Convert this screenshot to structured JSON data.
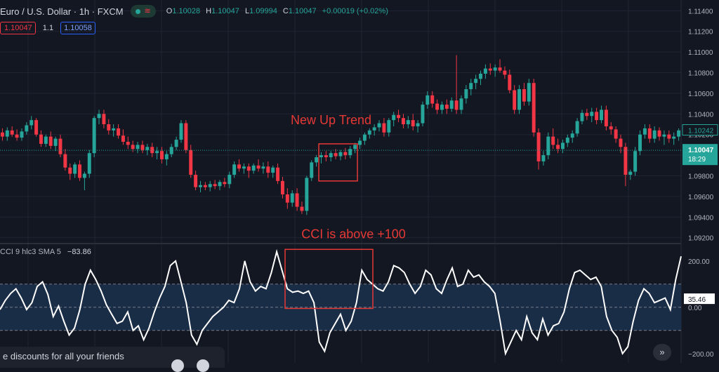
{
  "header": {
    "symbol": "Euro / U.S. Dollar · 1h · FXCM",
    "ohlc": {
      "o_label": "O",
      "o": "1.10028",
      "h_label": "H",
      "h": "1.10047",
      "l_label": "L",
      "l": "1.09994",
      "c_label": "C",
      "c": "1.10047",
      "change": "+0.00019 (+0.02%)"
    }
  },
  "quote": {
    "bid": "1.10047",
    "spread": "1.1",
    "ask": "1.10058"
  },
  "cci_legend": {
    "name": "CCI 9 hlc3 SMA 5",
    "value": "−83.86"
  },
  "popup": {
    "text": "e discounts for all your friends"
  },
  "scroll_icon": "»",
  "chart_data": [
    {
      "type": "candlestick",
      "y_ticks": [
        "1.11400",
        "1.11200",
        "1.11000",
        "1.10800",
        "1.10600",
        "1.10400",
        "1.10200",
        "1.10000",
        "1.09800",
        "1.09600",
        "1.09400",
        "1.09200"
      ],
      "ylim": [
        1.0915,
        1.1145
      ],
      "up_color": "#26a69a",
      "down_color": "#f23645",
      "last_price_label": "1.10047",
      "countdown": "18:29",
      "secondary_price_label": "1.10242",
      "annotation": {
        "text": "New Up Trend",
        "color": "#e53935",
        "box": {
          "candles": [
            66,
            74
          ],
          "price_range": [
            1.0975,
            1.1011
          ]
        }
      },
      "candles": [
        [
          1.1022,
          1.1026,
          1.1014,
          1.1018
        ],
        [
          1.1018,
          1.1027,
          1.1014,
          1.1024
        ],
        [
          1.1024,
          1.1028,
          1.1018,
          1.102
        ],
        [
          1.102,
          1.1025,
          1.1014,
          1.1017
        ],
        [
          1.1017,
          1.1026,
          1.1014,
          1.1023
        ],
        [
          1.1023,
          1.1032,
          1.102,
          1.1029
        ],
        [
          1.1029,
          1.1038,
          1.1025,
          1.1034
        ],
        [
          1.1034,
          1.1036,
          1.1018,
          1.102
        ],
        [
          1.102,
          1.1024,
          1.1008,
          1.1011
        ],
        [
          1.1011,
          1.102,
          1.1008,
          1.1018
        ],
        [
          1.1018,
          1.1023,
          1.1006,
          1.1009
        ],
        [
          1.1009,
          1.1018,
          1.1004,
          1.1016
        ],
        [
          1.1016,
          1.102,
          1.0998,
          1.1001
        ],
        [
          1.1001,
          1.1006,
          1.0985,
          1.0988
        ],
        [
          1.0988,
          1.0992,
          1.0976,
          1.0982
        ],
        [
          1.0982,
          1.0993,
          1.0978,
          1.0991
        ],
        [
          1.0991,
          1.0995,
          1.0975,
          1.0978
        ],
        [
          1.0978,
          1.0984,
          1.0966,
          1.0982
        ],
        [
          1.0982,
          1.1005,
          1.0978,
          1.1002
        ],
        [
          1.1002,
          1.1038,
          1.0998,
          1.1036
        ],
        [
          1.1036,
          1.1044,
          1.103,
          1.104
        ],
        [
          1.104,
          1.1044,
          1.1026,
          1.103
        ],
        [
          1.103,
          1.1035,
          1.102,
          1.1024
        ],
        [
          1.1024,
          1.103,
          1.1018,
          1.1026
        ],
        [
          1.1026,
          1.103,
          1.1016,
          1.1019
        ],
        [
          1.1019,
          1.1025,
          1.101,
          1.1013
        ],
        [
          1.1013,
          1.1018,
          1.1006,
          1.101
        ],
        [
          1.101,
          1.1014,
          1.1003,
          1.1006
        ],
        [
          1.1006,
          1.1013,
          1.1002,
          1.101
        ],
        [
          1.101,
          1.1014,
          1.1002,
          1.1005
        ],
        [
          1.1005,
          1.1011,
          1.1,
          1.1008
        ],
        [
          1.1008,
          1.1012,
          1.0998,
          1.1002
        ],
        [
          1.1002,
          1.1008,
          1.0996,
          1.1004
        ],
        [
          1.1004,
          1.1008,
          1.0992,
          1.0996
        ],
        [
          1.0996,
          1.1004,
          1.099,
          1.1001
        ],
        [
          1.1001,
          1.1011,
          1.0998,
          1.1008
        ],
        [
          1.1008,
          1.1018,
          1.1005,
          1.1015
        ],
        [
          1.1015,
          1.1034,
          1.1012,
          1.1031
        ],
        [
          1.1031,
          1.1034,
          1.1002,
          1.1005
        ],
        [
          1.1005,
          1.101,
          1.0978,
          1.0981
        ],
        [
          1.0981,
          1.0985,
          1.0966,
          1.0969
        ],
        [
          1.0969,
          1.0975,
          1.0964,
          1.0971
        ],
        [
          1.0971,
          1.0974,
          1.0966,
          1.0969
        ],
        [
          1.0969,
          1.0975,
          1.0965,
          1.0972
        ],
        [
          1.0972,
          1.0976,
          1.0967,
          1.097
        ],
        [
          1.097,
          1.0976,
          1.0966,
          1.0974
        ],
        [
          1.0974,
          1.0978,
          1.0969,
          1.0972
        ],
        [
          1.0972,
          1.0984,
          1.0968,
          1.0981
        ],
        [
          1.0981,
          1.0994,
          1.0978,
          1.0991
        ],
        [
          1.0991,
          1.0996,
          1.0984,
          1.0987
        ],
        [
          1.0987,
          1.0992,
          1.0982,
          1.0989
        ],
        [
          1.0989,
          1.0992,
          1.0978,
          1.0985
        ],
        [
          1.0985,
          1.0992,
          1.0982,
          1.099
        ],
        [
          1.099,
          1.0996,
          1.0984,
          1.0987
        ],
        [
          1.0987,
          1.0993,
          1.0982,
          1.0989
        ],
        [
          1.0989,
          1.0994,
          1.0978,
          1.0983
        ],
        [
          1.0983,
          1.099,
          1.0978,
          1.0988
        ],
        [
          1.0988,
          1.0992,
          1.0972,
          1.0975
        ],
        [
          1.0975,
          1.0979,
          1.0958,
          1.0962
        ],
        [
          1.0962,
          1.0968,
          1.0948,
          1.0954
        ],
        [
          1.0954,
          1.0966,
          1.095,
          1.0963
        ],
        [
          1.0963,
          1.0968,
          1.0946,
          1.095
        ],
        [
          1.095,
          1.0955,
          1.0943,
          1.0946
        ],
        [
          1.0946,
          1.098,
          1.0942,
          1.0978
        ],
        [
          1.0978,
          1.0995,
          1.0975,
          1.0993
        ],
        [
          1.0993,
          1.1,
          1.0989,
          1.0998
        ],
        [
          1.0998,
          1.1003,
          1.0992,
          1.1
        ],
        [
          1.1,
          1.1004,
          1.0994,
          1.0998
        ],
        [
          1.0998,
          1.1004,
          1.0994,
          1.1002
        ],
        [
          1.1002,
          1.1006,
          1.0996,
          1.0999
        ],
        [
          1.0999,
          1.1005,
          1.0995,
          1.1003
        ],
        [
          1.1003,
          1.1007,
          1.0996,
          1.1
        ],
        [
          1.1,
          1.1009,
          1.0997,
          1.1006
        ],
        [
          1.1006,
          1.1012,
          1.1002,
          1.101
        ],
        [
          1.101,
          1.1017,
          1.1006,
          1.1014
        ],
        [
          1.1014,
          1.1022,
          1.101,
          1.102
        ],
        [
          1.102,
          1.1026,
          1.1016,
          1.1024
        ],
        [
          1.1024,
          1.103,
          1.1019,
          1.1027
        ],
        [
          1.1027,
          1.1034,
          1.1023,
          1.1031
        ],
        [
          1.1031,
          1.1036,
          1.1018,
          1.1022
        ],
        [
          1.1022,
          1.1036,
          1.1018,
          1.1034
        ],
        [
          1.1034,
          1.1042,
          1.1028,
          1.1039
        ],
        [
          1.1039,
          1.1044,
          1.1032,
          1.1036
        ],
        [
          1.1036,
          1.104,
          1.1026,
          1.103
        ],
        [
          1.103,
          1.1038,
          1.1026,
          1.1034
        ],
        [
          1.1034,
          1.104,
          1.1024,
          1.1028
        ],
        [
          1.1028,
          1.1034,
          1.1022,
          1.1031
        ],
        [
          1.1031,
          1.1052,
          1.1028,
          1.1049
        ],
        [
          1.1049,
          1.1062,
          1.1045,
          1.1058
        ],
        [
          1.1058,
          1.1062,
          1.1046,
          1.105
        ],
        [
          1.105,
          1.1054,
          1.104,
          1.1044
        ],
        [
          1.1044,
          1.1052,
          1.104,
          1.1049
        ],
        [
          1.1049,
          1.1054,
          1.104,
          1.1045
        ],
        [
          1.1045,
          1.1056,
          1.1042,
          1.1053
        ],
        [
          1.1053,
          1.1097,
          1.104,
          1.1044
        ],
        [
          1.1044,
          1.1058,
          1.104,
          1.1055
        ],
        [
          1.1055,
          1.1068,
          1.105,
          1.1064
        ],
        [
          1.1064,
          1.1074,
          1.1058,
          1.107
        ],
        [
          1.107,
          1.1078,
          1.1064,
          1.1074
        ],
        [
          1.1074,
          1.1082,
          1.1068,
          1.1079
        ],
        [
          1.1079,
          1.1088,
          1.1074,
          1.1084
        ],
        [
          1.1084,
          1.1089,
          1.1078,
          1.1082
        ],
        [
          1.1082,
          1.1088,
          1.1076,
          1.1085
        ],
        [
          1.1085,
          1.1093,
          1.108,
          1.1082
        ],
        [
          1.1082,
          1.1086,
          1.1074,
          1.1078
        ],
        [
          1.1078,
          1.1083,
          1.106,
          1.1063
        ],
        [
          1.1063,
          1.1068,
          1.104,
          1.1044
        ],
        [
          1.1044,
          1.1068,
          1.104,
          1.1064
        ],
        [
          1.1064,
          1.107,
          1.1048,
          1.1052
        ],
        [
          1.1052,
          1.1074,
          1.1048,
          1.107
        ],
        [
          1.107,
          1.1074,
          1.1018,
          1.1022
        ],
        [
          1.1022,
          1.1026,
          1.0986,
          1.0994
        ],
        [
          1.0994,
          1.1004,
          1.099,
          1.1
        ],
        [
          1.1,
          1.1022,
          1.0996,
          1.1018
        ],
        [
          1.1018,
          1.1026,
          1.1006,
          1.101
        ],
        [
          1.101,
          1.1016,
          1.1002,
          1.1006
        ],
        [
          1.1006,
          1.1015,
          1.1002,
          1.1012
        ],
        [
          1.1012,
          1.102,
          1.1008,
          1.1017
        ],
        [
          1.1017,
          1.1024,
          1.1012,
          1.1021
        ],
        [
          1.1021,
          1.1036,
          1.1018,
          1.1033
        ],
        [
          1.1033,
          1.1044,
          1.103,
          1.1041
        ],
        [
          1.1041,
          1.1045,
          1.1034,
          1.1038
        ],
        [
          1.1038,
          1.1046,
          1.1032,
          1.1042
        ],
        [
          1.1042,
          1.1046,
          1.103,
          1.1034
        ],
        [
          1.1034,
          1.1048,
          1.1031,
          1.1044
        ],
        [
          1.1044,
          1.1048,
          1.1024,
          1.1028
        ],
        [
          1.1028,
          1.1032,
          1.102,
          1.1025
        ],
        [
          1.1025,
          1.1028,
          1.1012,
          1.1016
        ],
        [
          1.1016,
          1.102,
          1.1002,
          1.1008
        ],
        [
          1.1008,
          1.1012,
          1.097,
          1.0981
        ],
        [
          1.0981,
          1.0986,
          1.0976,
          1.0984
        ],
        [
          1.0984,
          1.1008,
          1.098,
          1.1004
        ],
        [
          1.1004,
          1.1024,
          1.1,
          1.102
        ],
        [
          1.102,
          1.103,
          1.1016,
          1.1026
        ],
        [
          1.1026,
          1.103,
          1.1012,
          1.1016
        ],
        [
          1.1016,
          1.1028,
          1.1012,
          1.1024
        ],
        [
          1.1024,
          1.1027,
          1.1014,
          1.1018
        ],
        [
          1.1018,
          1.1024,
          1.101,
          1.102
        ],
        [
          1.102,
          1.1024,
          1.1012,
          1.1016
        ],
        [
          1.1016,
          1.1022,
          1.101,
          1.1018
        ],
        [
          1.1018,
          1.1026,
          1.1014,
          1.1024
        ]
      ]
    },
    {
      "type": "line",
      "name": "CCI",
      "y_ticks": [
        "200.00",
        "0.00",
        "−200.00"
      ],
      "ylim": [
        -240,
        260
      ],
      "band": [
        -100,
        100
      ],
      "current_value_label": "35.46",
      "annotation": {
        "text": "CCI is above +100",
        "color": "#e53935",
        "box": {
          "x_range": [
            406,
            531
          ],
          "value_range": [
            -5,
            250
          ]
        }
      },
      "values": [
        -10,
        30,
        60,
        80,
        40,
        -10,
        20,
        90,
        110,
        55,
        -40,
        5,
        -60,
        -120,
        -90,
        -10,
        100,
        160,
        120,
        70,
        10,
        -30,
        -70,
        -60,
        -20,
        -100,
        -80,
        -140,
        -90,
        -20,
        40,
        90,
        180,
        200,
        110,
        20,
        -120,
        -160,
        -100,
        -70,
        -40,
        -20,
        0,
        30,
        20,
        80,
        200,
        110,
        70,
        90,
        80,
        150,
        240,
        160,
        80,
        65,
        70,
        60,
        70,
        20,
        -150,
        -190,
        -110,
        -70,
        -30,
        -100,
        -60,
        20,
        160,
        120,
        100,
        80,
        70,
        110,
        180,
        170,
        150,
        100,
        60,
        90,
        160,
        140,
        80,
        60,
        120,
        170,
        90,
        100,
        160,
        130,
        140,
        110,
        90,
        60,
        -60,
        -200,
        -150,
        -100,
        -140,
        -40,
        -110,
        -140,
        -50,
        -120,
        -80,
        -70,
        -20,
        80,
        150,
        160,
        140,
        120,
        130,
        90,
        -40,
        -100,
        -130,
        -200,
        -170,
        -60,
        30,
        80,
        60,
        20,
        30,
        40,
        -10,
        120,
        220
      ]
    }
  ]
}
